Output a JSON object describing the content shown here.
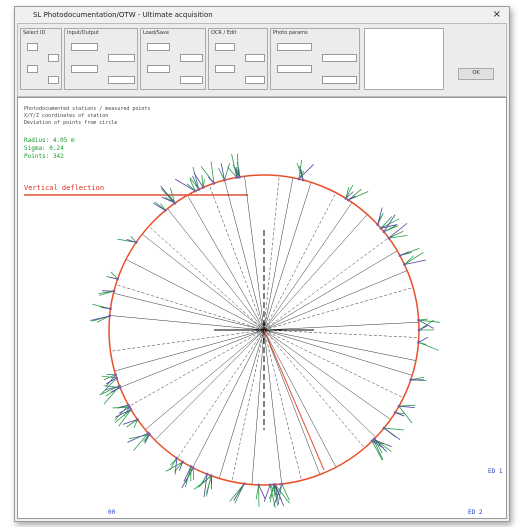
{
  "window": {
    "title": "SL Photodocumentation/OTW - Ultimate acquisition"
  },
  "toolbar": {
    "groups": [
      "Select ID",
      "Input/Output",
      "Load/Save",
      "OCR / Edit",
      "Photo params"
    ],
    "button": "OK"
  },
  "plot": {
    "info_lines": [
      "Photodocumented stations / measured points",
      "X/Y/Z coordinates of station",
      "Deviation of points from circle"
    ],
    "stats_lines": [
      "Radius: 4.05 m",
      "Sigma: 0.24",
      "Points: 342"
    ],
    "deflection_label": "Vertical deflection",
    "corner_label": "ED 1",
    "bottom_left": "00",
    "bottom_right": "ED 2"
  }
}
